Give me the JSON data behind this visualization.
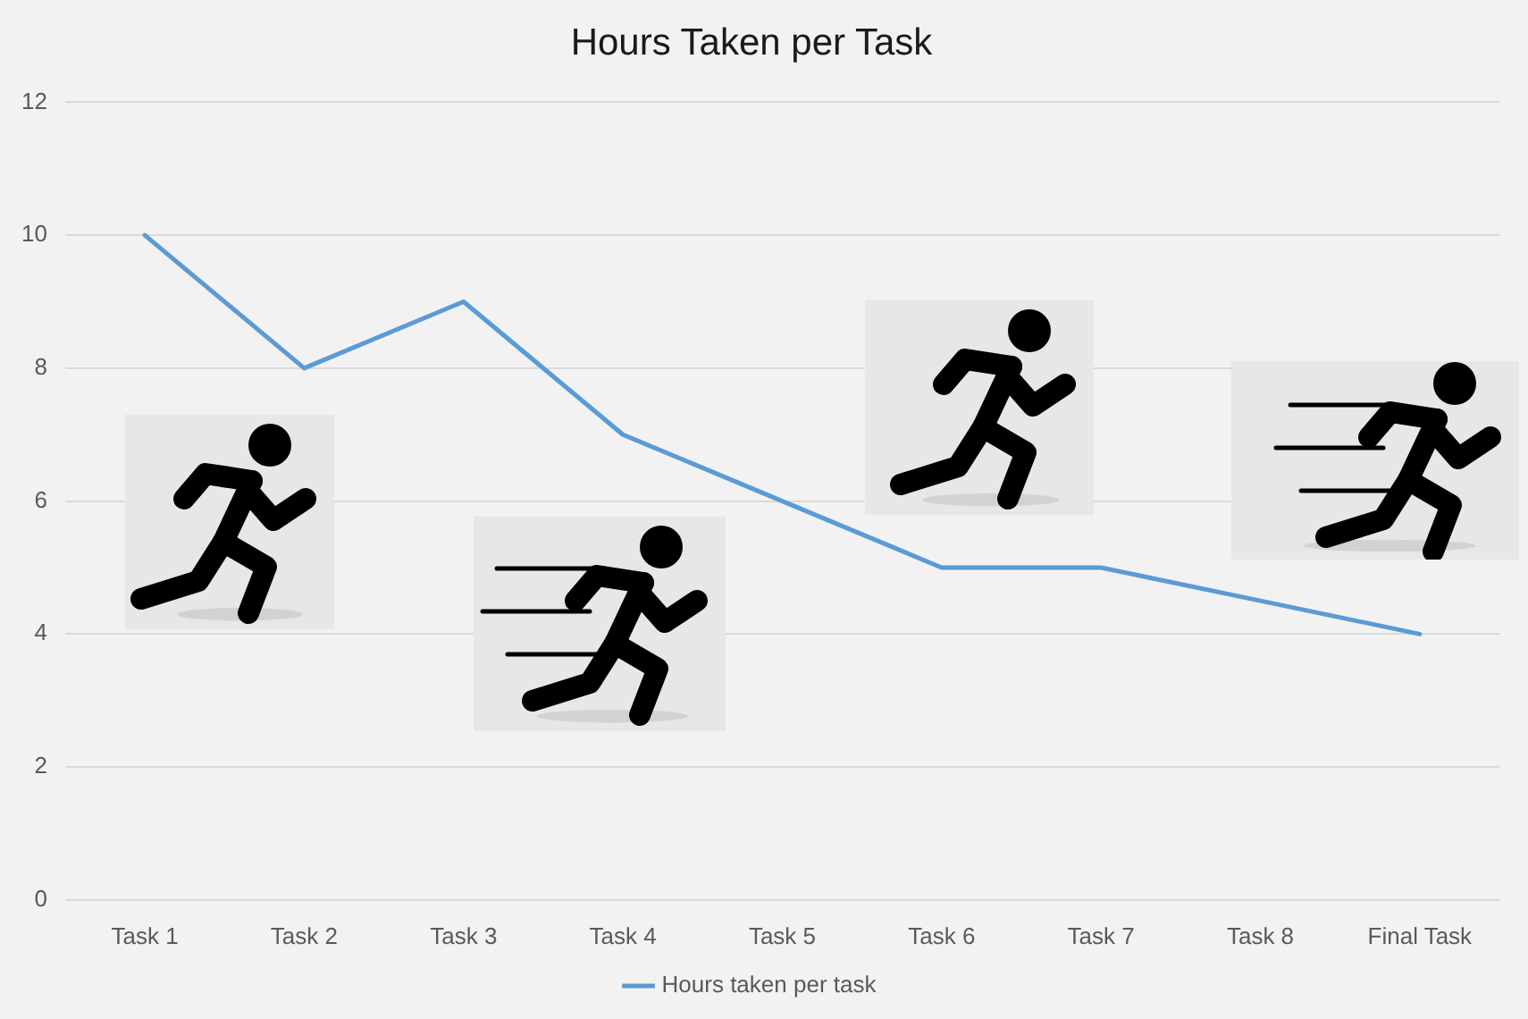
{
  "chart_data": {
    "type": "line",
    "title": "Hours Taken per Task",
    "categories": [
      "Task 1",
      "Task 2",
      "Task 3",
      "Task 4",
      "Task 5",
      "Task 6",
      "Task 7",
      "Task 8",
      "Final Task"
    ],
    "series": [
      {
        "name": "Hours taken per task",
        "color": "#5b9bd5",
        "values": [
          10,
          8,
          9,
          7,
          6,
          5,
          5,
          4.5,
          4
        ]
      }
    ],
    "ylim": [
      0,
      12
    ],
    "yticks": [
      0,
      2,
      4,
      6,
      8,
      10,
      12
    ],
    "grid": "y",
    "legend": "bottom",
    "marker": "none",
    "line_style": "solid"
  }
}
